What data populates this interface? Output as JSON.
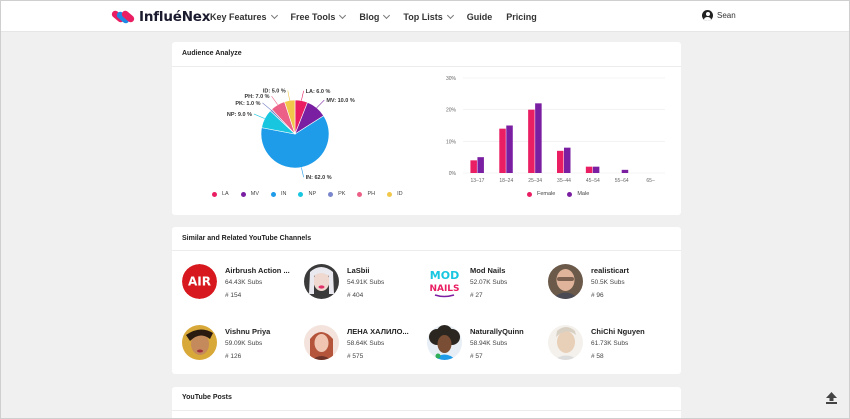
{
  "brand": {
    "name": "InfluéNex"
  },
  "nav": {
    "items": [
      {
        "label": "Key Features",
        "dropdown": true
      },
      {
        "label": "Free Tools",
        "dropdown": true
      },
      {
        "label": "Blog",
        "dropdown": true
      },
      {
        "label": "Top Lists",
        "dropdown": true
      },
      {
        "label": "Guide",
        "dropdown": false
      },
      {
        "label": "Pricing",
        "dropdown": false
      }
    ],
    "user": {
      "name": "Sean",
      "icon": "account-circle-icon"
    }
  },
  "audience": {
    "title": "Audience Analyze",
    "pie_legend": [
      {
        "label": "LA",
        "color": "#e91e63"
      },
      {
        "label": "MV",
        "color": "#7b1fa2"
      },
      {
        "label": "IN",
        "color": "#1e9be9"
      },
      {
        "label": "NP",
        "color": "#18c6e0"
      },
      {
        "label": "PK",
        "color": "#7986cb"
      },
      {
        "label": "PH",
        "color": "#ec5f86"
      },
      {
        "label": "ID",
        "color": "#f2c84b"
      }
    ],
    "bar_legend": [
      {
        "label": "Female",
        "color": "#e91e63"
      },
      {
        "label": "Male",
        "color": "#7b1fa2"
      }
    ]
  },
  "chart_data": [
    {
      "type": "pie",
      "labels": [
        "LA",
        "MV",
        "IN",
        "NP",
        "PK",
        "PH",
        "ID"
      ],
      "values": [
        6.0,
        10.0,
        62.0,
        9.0,
        1.0,
        7.0,
        5.0
      ],
      "slice_labels": [
        "LA: 6.0 %",
        "MV: 10.0 %",
        "IN: 62.0 %",
        "NP: 9.0 %",
        "PK: 1.0 %",
        "PH: 7.0 %",
        "ID: 5.0 %"
      ],
      "colors": [
        "#e91e63",
        "#7b1fa2",
        "#1e9be9",
        "#18c6e0",
        "#7986cb",
        "#ec5f86",
        "#f2c84b"
      ],
      "legend_position": "bottom"
    },
    {
      "type": "bar",
      "categories": [
        "13–17",
        "18–24",
        "25–34",
        "35–44",
        "45–54",
        "55–64",
        "65–"
      ],
      "series": [
        {
          "name": "Female",
          "color": "#e91e63",
          "values": [
            4,
            14,
            20,
            7,
            2,
            0,
            0
          ]
        },
        {
          "name": "Male",
          "color": "#7b1fa2",
          "values": [
            5,
            15,
            22,
            8,
            2,
            1,
            0
          ]
        }
      ],
      "ylim": [
        0,
        30
      ],
      "yticks": [
        "0%",
        "10%",
        "20%",
        "30%"
      ],
      "grid": true,
      "legend_position": "bottom"
    }
  ],
  "similar": {
    "title": "Similar and Related YouTube Channels",
    "channels": [
      {
        "name": "Airbrush Action ...",
        "subs": "64.43K Subs",
        "rank": "# 154",
        "avatar": "air-logo"
      },
      {
        "name": "LaSbii",
        "subs": "54.91K Subs",
        "rank": "# 404",
        "avatar": "face"
      },
      {
        "name": "Mod Nails",
        "subs": "52.07K Subs",
        "rank": "# 27",
        "avatar": "mod-nails-logo"
      },
      {
        "name": "realisticart",
        "subs": "50.5K Subs",
        "rank": "# 96",
        "avatar": "face"
      },
      {
        "name": "Vishnu Priya",
        "subs": "59.09K Subs",
        "rank": "# 126",
        "avatar": "face"
      },
      {
        "name": "ЛЕНА ХАЛИЛО...",
        "subs": "58.64K Subs",
        "rank": "# 575",
        "avatar": "face"
      },
      {
        "name": "NaturallyQuinn",
        "subs": "58.94K Subs",
        "rank": "# 57",
        "avatar": "face"
      },
      {
        "name": "ChiChi Nguyen",
        "subs": "61.73K Subs",
        "rank": "# 58",
        "avatar": "face"
      }
    ]
  },
  "posts": {
    "title": "YouTube Posts"
  },
  "scroll_top": {
    "icon": "upload-arrow-icon"
  }
}
